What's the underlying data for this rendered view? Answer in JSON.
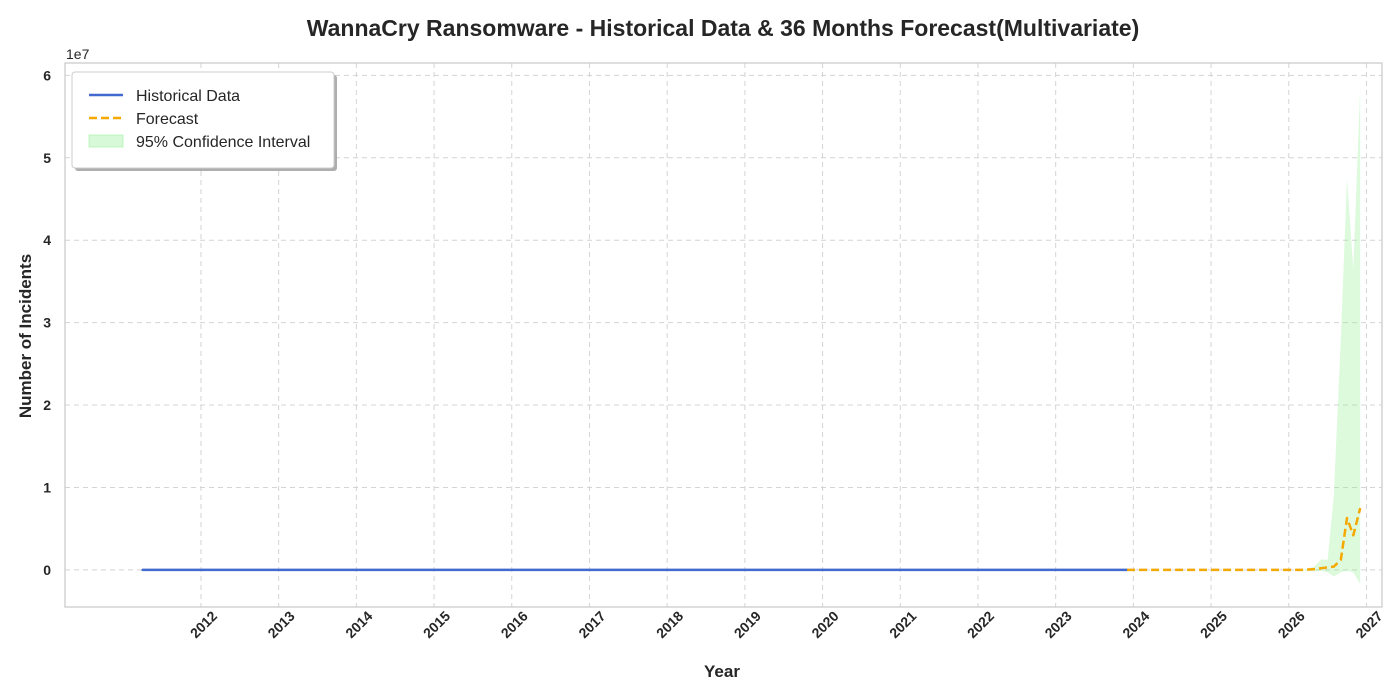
{
  "chart_data": {
    "type": "line",
    "title": "WannaCry Ransomware - Historical Data & 36 Months Forecast(Multivariate)",
    "xlabel": "Year",
    "ylabel": "Number of Incidents",
    "y_offset_label": "1e7",
    "y_scale": 10000000,
    "xlim": [
      2010.25,
      2027.2
    ],
    "ylim": [
      -4500000,
      61500000
    ],
    "x_ticks": [
      2012,
      2013,
      2014,
      2015,
      2016,
      2017,
      2018,
      2019,
      2020,
      2021,
      2022,
      2023,
      2024,
      2025,
      2026,
      2027
    ],
    "x_tick_labels": [
      "2012",
      "2013",
      "2014",
      "2015",
      "2016",
      "2017",
      "2018",
      "2019",
      "2020",
      "2021",
      "2022",
      "2023",
      "2024",
      "2025",
      "2026",
      "2027"
    ],
    "y_ticks": [
      0,
      10000000,
      20000000,
      30000000,
      40000000,
      50000000,
      60000000
    ],
    "y_tick_labels": [
      "0",
      "1",
      "2",
      "3",
      "4",
      "5",
      "6"
    ],
    "grid": true,
    "legend_position": "top-left",
    "legend": [
      "Historical Data",
      "Forecast",
      "95% Confidence Interval"
    ],
    "series": [
      {
        "name": "Historical Data",
        "color": "#4169cf",
        "style": "solid",
        "x": [
          2011.25,
          2023.92
        ],
        "y": [
          0,
          0
        ]
      },
      {
        "name": "Forecast",
        "color": "#f5a800",
        "style": "dashed",
        "x": [
          2023.92,
          2026.17,
          2026.33,
          2026.5,
          2026.58,
          2026.67,
          2026.75,
          2026.83,
          2026.92
        ],
        "y": [
          0,
          0,
          100000,
          300000,
          400000,
          1200000,
          6300000,
          4200000,
          7500000
        ]
      }
    ],
    "confidence_interval": {
      "name": "95% Confidence Interval",
      "color": "#90ee90",
      "x": [
        2023.92,
        2026.17,
        2026.33,
        2026.42,
        2026.5,
        2026.58,
        2026.67,
        2026.75,
        2026.83,
        2026.92
      ],
      "lower": [
        0,
        0,
        -200000,
        -100000,
        -300000,
        -800000,
        -300000,
        -100000,
        -300000,
        -1700000
      ],
      "upper": [
        0,
        0,
        400000,
        1300000,
        1200000,
        9000000,
        28000000,
        47500000,
        36500000,
        58500000
      ]
    }
  }
}
